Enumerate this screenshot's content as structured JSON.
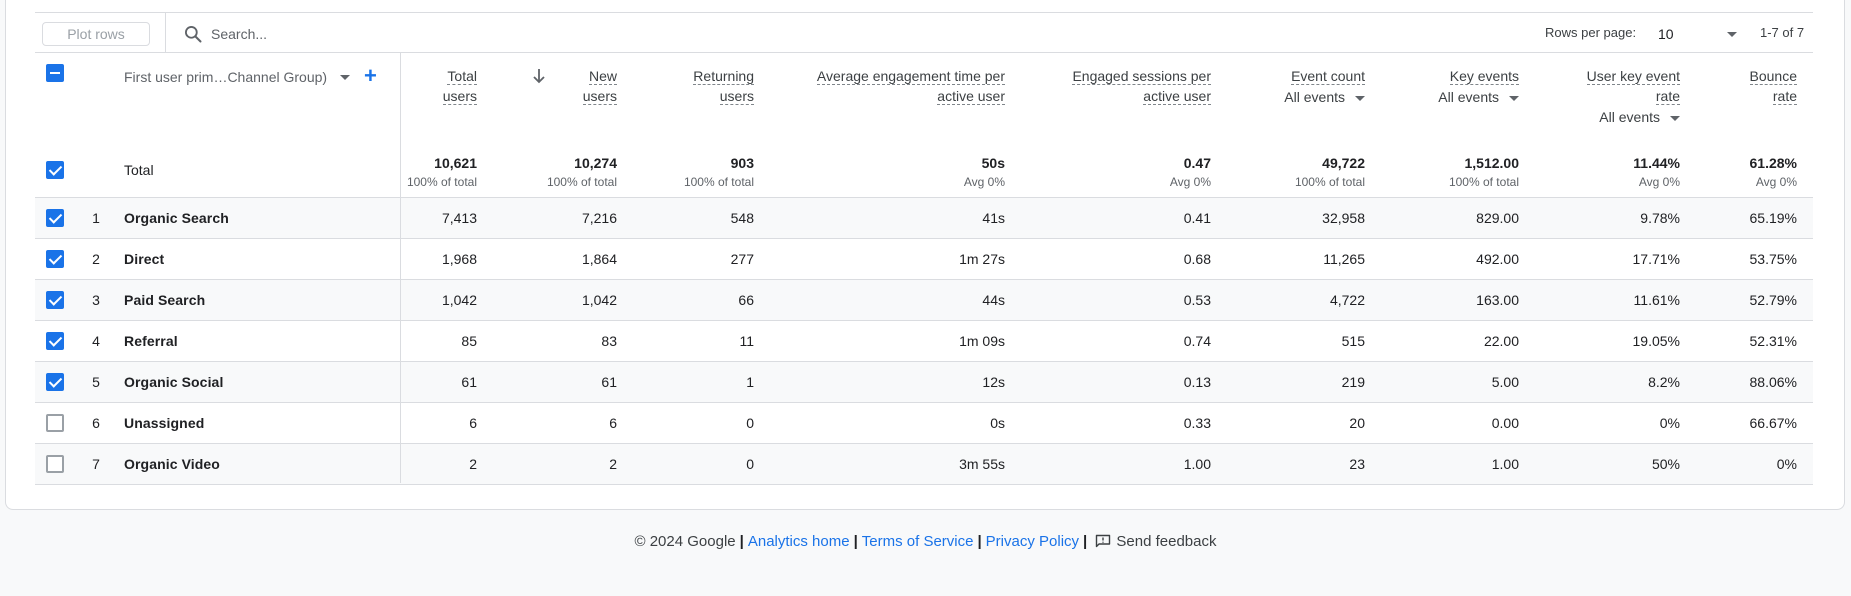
{
  "toolbar": {
    "plot_rows_label": "Plot rows",
    "search_placeholder": "Search...",
    "rows_per_page_label": "Rows per page:",
    "rows_per_page_value": "10",
    "page_info": "1-7 of 7"
  },
  "header": {
    "dimension": "First user prim…Channel Group)",
    "metrics": [
      {
        "line1": "Total",
        "line2": "users",
        "sub": ""
      },
      {
        "line1": "New",
        "line2": "users",
        "sub": ""
      },
      {
        "line1": "Returning",
        "line2": "users",
        "sub": ""
      },
      {
        "line1": "Average engagement time per",
        "line2": "active user",
        "sub": ""
      },
      {
        "line1": "Engaged sessions per",
        "line2": "active user",
        "sub": ""
      },
      {
        "line1": "Event count",
        "line2": "",
        "sub": "All events"
      },
      {
        "line1": "Key events",
        "line2": "",
        "sub": "All events"
      },
      {
        "line1": "User key event",
        "line2": "rate",
        "sub": "All events"
      },
      {
        "line1": "Bounce",
        "line2": "rate",
        "sub": ""
      }
    ]
  },
  "totals": {
    "label": "Total",
    "values": [
      "10,621",
      "10,274",
      "903",
      "50s",
      "0.47",
      "49,722",
      "1,512.00",
      "11.44%",
      "61.28%"
    ],
    "subs": [
      "100% of total",
      "100% of total",
      "100% of total",
      "Avg 0%",
      "Avg 0%",
      "100% of total",
      "100% of total",
      "Avg 0%",
      "Avg 0%"
    ]
  },
  "rows": [
    {
      "num": "1",
      "name": "Organic Search",
      "checked": true,
      "values": [
        "7,413",
        "7,216",
        "548",
        "41s",
        "0.41",
        "32,958",
        "829.00",
        "9.78%",
        "65.19%"
      ]
    },
    {
      "num": "2",
      "name": "Direct",
      "checked": true,
      "values": [
        "1,968",
        "1,864",
        "277",
        "1m 27s",
        "0.68",
        "11,265",
        "492.00",
        "17.71%",
        "53.75%"
      ]
    },
    {
      "num": "3",
      "name": "Paid Search",
      "checked": true,
      "values": [
        "1,042",
        "1,042",
        "66",
        "44s",
        "0.53",
        "4,722",
        "163.00",
        "11.61%",
        "52.79%"
      ]
    },
    {
      "num": "4",
      "name": "Referral",
      "checked": true,
      "values": [
        "85",
        "83",
        "11",
        "1m 09s",
        "0.74",
        "515",
        "22.00",
        "19.05%",
        "52.31%"
      ]
    },
    {
      "num": "5",
      "name": "Organic Social",
      "checked": true,
      "values": [
        "61",
        "61",
        "1",
        "12s",
        "0.13",
        "219",
        "5.00",
        "8.2%",
        "88.06%"
      ]
    },
    {
      "num": "6",
      "name": "Unassigned",
      "checked": false,
      "values": [
        "6",
        "6",
        "0",
        "0s",
        "0.33",
        "20",
        "0.00",
        "0%",
        "66.67%"
      ]
    },
    {
      "num": "7",
      "name": "Organic Video",
      "checked": false,
      "values": [
        "2",
        "2",
        "0",
        "3m 55s",
        "1.00",
        "23",
        "1.00",
        "50%",
        "0%"
      ]
    }
  ],
  "footer": {
    "copyright": "© 2024 Google",
    "links": [
      "Analytics home",
      "Terms of Service",
      "Privacy Policy"
    ],
    "feedback": "Send feedback"
  },
  "colors": {
    "accent": "#1a73e8",
    "border": "#dadce0",
    "text": "#202124",
    "muted": "#5f6368"
  },
  "icons": [
    "search-icon",
    "sort-down-arrow-icon",
    "chevron-down-icon",
    "add-icon",
    "checkbox-icon",
    "feedback-icon"
  ]
}
